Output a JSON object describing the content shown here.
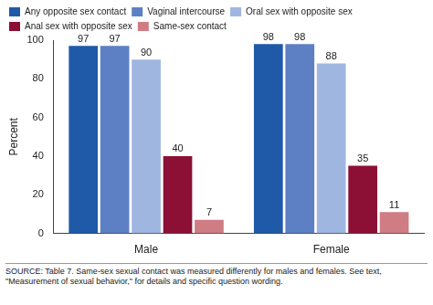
{
  "chart_data": {
    "type": "bar",
    "categories": [
      "Male",
      "Female"
    ],
    "series": [
      {
        "name": "Any opposite sex contact",
        "color": "#1f5aa8",
        "values": [
          97,
          98
        ]
      },
      {
        "name": "Vaginal intercourse",
        "color": "#5d80c4",
        "values": [
          97,
          98
        ]
      },
      {
        "name": "Oral sex with opposite sex",
        "color": "#9fb6e0",
        "values": [
          90,
          88
        ]
      },
      {
        "name": "Anal sex with opposite sex",
        "color": "#8c0f35",
        "values": [
          40,
          35
        ]
      },
      {
        "name": "Same-sex contact",
        "color": "#cf7c85",
        "values": [
          7,
          11
        ]
      }
    ],
    "y_label": "Percent",
    "ylim": [
      0,
      100
    ],
    "yticks": [
      0,
      20,
      40,
      60,
      80,
      100
    ],
    "grid": false,
    "legend": "top",
    "data_labels": true,
    "caption": "SOURCE: Table 7. Same-sex sexual contact was measured differently for males and females. See text, \"Measurement of sexual behavior,\" for details and specific question wording."
  }
}
